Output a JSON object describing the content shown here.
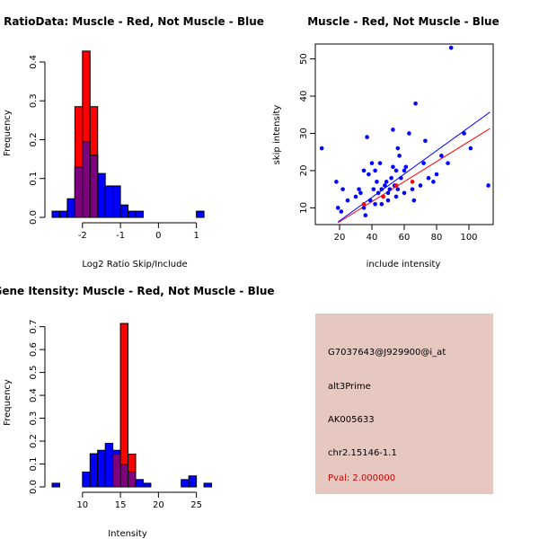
{
  "colors": {
    "red": "#ff0000",
    "blue": "#0000ff",
    "overlap": "#7f007f",
    "panel_bg": "#e6c8c0",
    "pval": "#cc0000"
  },
  "chart_data": [
    {
      "type": "bar",
      "subtype": "overlaid-histogram",
      "title": "RatioData: Muscle - Red, Not Muscle - Blue",
      "xlabel": "Log2 Ratio Skip/Include",
      "ylabel": "Frequency",
      "xlim": [
        -2.8,
        1.6
      ],
      "ylim": [
        0,
        0.43
      ],
      "xticks": [
        -2,
        -1,
        0,
        1
      ],
      "yticks": [
        0.0,
        0.1,
        0.2,
        0.3,
        0.4
      ],
      "xtick_labels": [
        "-2",
        "-1",
        "0",
        "1"
      ],
      "ytick_labels": [
        "0.0",
        "0.1",
        "0.2",
        "0.3",
        "0.4"
      ],
      "bin_start": -2.8,
      "bin_width": 0.2,
      "series": [
        {
          "name": "Not Muscle",
          "color": "blue",
          "values": [
            0.016,
            0.016,
            0.048,
            0.13,
            0.195,
            0.16,
            0.113,
            0.081,
            0.081,
            0.032,
            0.016,
            0.016,
            0,
            0,
            0,
            0,
            0,
            0,
            0,
            0.016,
            0
          ]
        },
        {
          "name": "Muscle",
          "color": "red",
          "values": [
            0,
            0,
            0,
            0.285,
            0.428,
            0.285,
            0,
            0,
            0,
            0,
            0,
            0,
            0,
            0,
            0,
            0,
            0,
            0,
            0,
            0,
            0
          ]
        }
      ]
    },
    {
      "type": "scatter",
      "title": "Muscle - Red, Not Muscle - Blue",
      "xlabel": "include intensity",
      "ylabel": "skip intensity",
      "xlim": [
        5,
        115
      ],
      "ylim": [
        5.5,
        54
      ],
      "xticks": [
        20,
        40,
        60,
        80,
        100
      ],
      "yticks": [
        10,
        20,
        30,
        40,
        50
      ],
      "xtick_labels": [
        "20",
        "40",
        "60",
        "80",
        "100"
      ],
      "ytick_labels": [
        "10",
        "20",
        "30",
        "40",
        "50"
      ],
      "series": [
        {
          "name": "Not Muscle",
          "color": "blue",
          "points": [
            [
              9,
              26
            ],
            [
              18,
              17
            ],
            [
              19,
              10
            ],
            [
              21,
              9
            ],
            [
              22,
              15
            ],
            [
              25,
              12
            ],
            [
              30,
              13
            ],
            [
              32,
              15
            ],
            [
              33,
              14
            ],
            [
              35,
              10
            ],
            [
              35,
              20
            ],
            [
              36,
              8
            ],
            [
              37,
              29
            ],
            [
              38,
              19
            ],
            [
              39,
              12
            ],
            [
              40,
              22
            ],
            [
              41,
              15
            ],
            [
              42,
              20
            ],
            [
              43,
              17
            ],
            [
              44,
              14
            ],
            [
              45,
              22
            ],
            [
              46,
              15
            ],
            [
              47,
              13
            ],
            [
              48,
              16
            ],
            [
              49,
              17
            ],
            [
              50,
              12
            ],
            [
              51,
              15
            ],
            [
              52,
              18
            ],
            [
              53,
              21
            ],
            [
              53,
              31
            ],
            [
              54,
              16
            ],
            [
              55,
              20
            ],
            [
              56,
              26
            ],
            [
              56,
              15
            ],
            [
              57,
              24
            ],
            [
              58,
              18
            ],
            [
              60,
              14
            ],
            [
              60,
              20
            ],
            [
              61,
              21
            ],
            [
              63,
              30
            ],
            [
              65,
              15
            ],
            [
              66,
              12
            ],
            [
              67,
              38
            ],
            [
              70,
              16
            ],
            [
              72,
              22
            ],
            [
              73,
              28
            ],
            [
              75,
              18
            ],
            [
              78,
              17
            ],
            [
              80,
              19
            ],
            [
              83,
              24
            ],
            [
              87,
              22
            ],
            [
              89,
              53
            ],
            [
              97,
              30
            ],
            [
              101,
              26
            ],
            [
              112,
              16
            ],
            [
              42,
              11
            ],
            [
              46,
              11
            ],
            [
              50,
              14
            ],
            [
              55,
              13
            ]
          ],
          "fit": [
            [
              19,
              6.2
            ],
            [
              113,
              35.7
            ]
          ]
        },
        {
          "name": "Muscle",
          "color": "red",
          "points": [
            [
              35,
              11
            ],
            [
              47,
              13
            ],
            [
              55,
              16
            ],
            [
              65,
              17
            ]
          ],
          "fit": [
            [
              19,
              6.0
            ],
            [
              113,
              31.3
            ]
          ]
        }
      ]
    },
    {
      "type": "bar",
      "subtype": "overlaid-histogram",
      "title": "Gene Itensity: Muscle - Red, Not Muscle - Blue",
      "xlabel": "Intensity",
      "ylabel": "Frequency",
      "xlim": [
        6,
        28
      ],
      "ylim": [
        0,
        0.73
      ],
      "xticks": [
        10,
        15,
        20,
        25
      ],
      "yticks": [
        0.0,
        0.1,
        0.2,
        0.3,
        0.4,
        0.5,
        0.6,
        0.7
      ],
      "xtick_labels": [
        "10",
        "15",
        "20",
        "25"
      ],
      "ytick_labels": [
        "0.0",
        "0.1",
        "0.2",
        "0.3",
        "0.4",
        "0.5",
        "0.6",
        "0.7"
      ],
      "bin_start": 6,
      "bin_width": 1,
      "series": [
        {
          "name": "Not Muscle",
          "color": "blue",
          "values": [
            0.016,
            0,
            0,
            0,
            0.065,
            0.145,
            0.16,
            0.19,
            0.16,
            0.097,
            0.065,
            0.032,
            0.016,
            0,
            0,
            0,
            0,
            0.032,
            0.048,
            0,
            0.016
          ]
        },
        {
          "name": "Muscle",
          "color": "red",
          "values": [
            0,
            0,
            0,
            0,
            0,
            0,
            0,
            0,
            0.143,
            0.714,
            0.143,
            0,
            0,
            0,
            0,
            0,
            0,
            0,
            0,
            0,
            0
          ]
        }
      ]
    }
  ],
  "info_panel": {
    "probe_id": "G7037643@J929900@i_at",
    "event_type": "alt3Prime",
    "accession": "AK005633",
    "location": "chr2.15146-1.1",
    "pval": "Pval: 2.000000"
  }
}
